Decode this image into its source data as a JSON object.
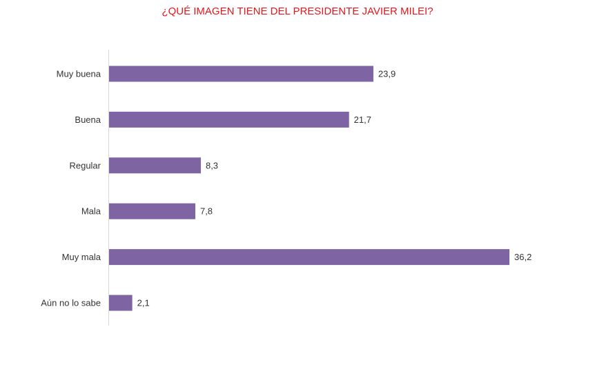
{
  "chart_data": {
    "type": "bar",
    "orientation": "horizontal",
    "title": "¿QUÉ IMAGEN TIENE DEL PRESIDENTE JAVIER MILEI?",
    "categories": [
      "Muy buena",
      "Buena",
      "Regular",
      "Mala",
      "Muy mala",
      "Aún no lo sabe"
    ],
    "values": [
      23.9,
      21.7,
      8.3,
      7.8,
      36.2,
      2.1
    ],
    "value_labels": [
      "23,9",
      "21,7",
      "8,3",
      "7,8",
      "36,2",
      "2,1"
    ],
    "xlim": [
      0,
      36.2
    ],
    "grid": false,
    "legend": "none",
    "colors": {
      "bar": "#7e64a3",
      "title": "#e8141b",
      "axis": "#d9d9d9"
    }
  }
}
